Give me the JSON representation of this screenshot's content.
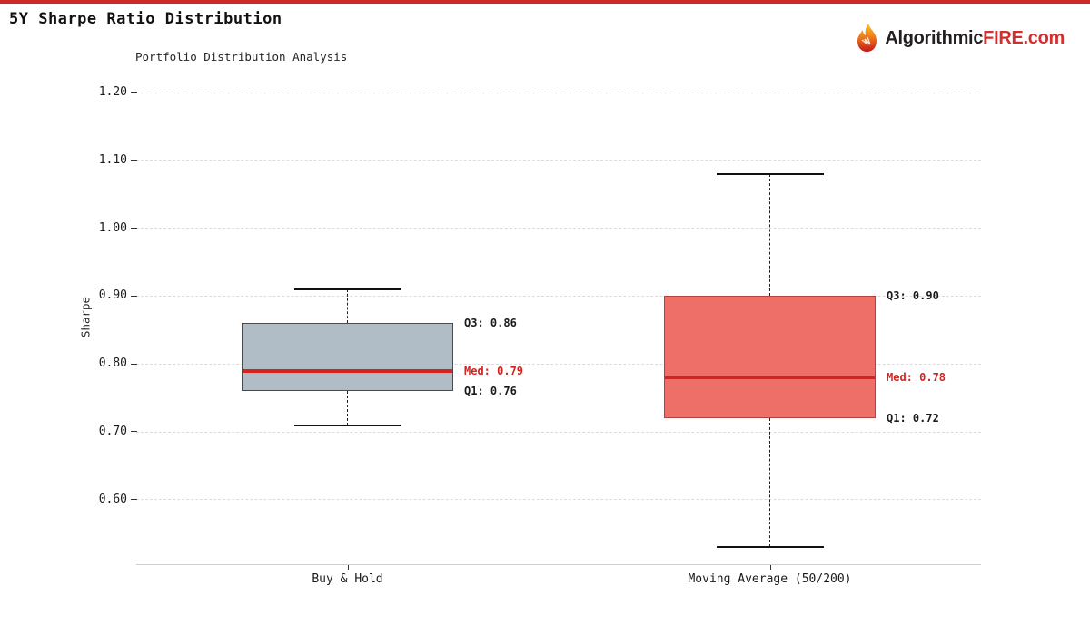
{
  "page": {
    "title": "5Y Sharpe Ratio Distribution",
    "accent_color": "#cc2b28"
  },
  "brand": {
    "name_primary": "Algorithmic",
    "name_secondary": "FIRE",
    "name_tld": ".com",
    "icon": "flame-icon",
    "primary_color": "#231f20",
    "secondary_color": "#d32f2f"
  },
  "chart_data": {
    "type": "boxplot",
    "title": "Portfolio Distribution Analysis",
    "ylabel": "Sharpe",
    "yticks": [
      1.2,
      1.1,
      1.0,
      0.9,
      0.8,
      0.7,
      0.6
    ],
    "ytick_labels": [
      "1.20",
      "1.10",
      "1.00",
      "0.90",
      "0.80",
      "0.70",
      "0.60"
    ],
    "ylim": [
      0.5,
      1.22
    ],
    "grid": true,
    "grid_style": "dashed",
    "legend": "none",
    "categories": [
      "Buy & Hold",
      "Moving Average (50/200)"
    ],
    "median_color": "#d62320",
    "series": [
      {
        "name": "Buy & Hold",
        "whisker_low": 0.71,
        "q1": 0.76,
        "median": 0.79,
        "q3": 0.86,
        "whisker_high": 0.91,
        "fill": "#b0bdc6",
        "border": "#4a4a4a",
        "labels": {
          "q3": "Q3: 0.86",
          "med": "Med: 0.79",
          "q1": "Q1: 0.76"
        }
      },
      {
        "name": "Moving Average (50/200)",
        "whisker_low": 0.53,
        "q1": 0.72,
        "median": 0.78,
        "q3": 0.9,
        "whisker_high": 1.08,
        "fill": "#ee6f68",
        "border": "#b5413c",
        "labels": {
          "q3": "Q3: 0.90",
          "med": "Med: 0.78",
          "q1": "Q1: 0.72"
        }
      }
    ]
  }
}
